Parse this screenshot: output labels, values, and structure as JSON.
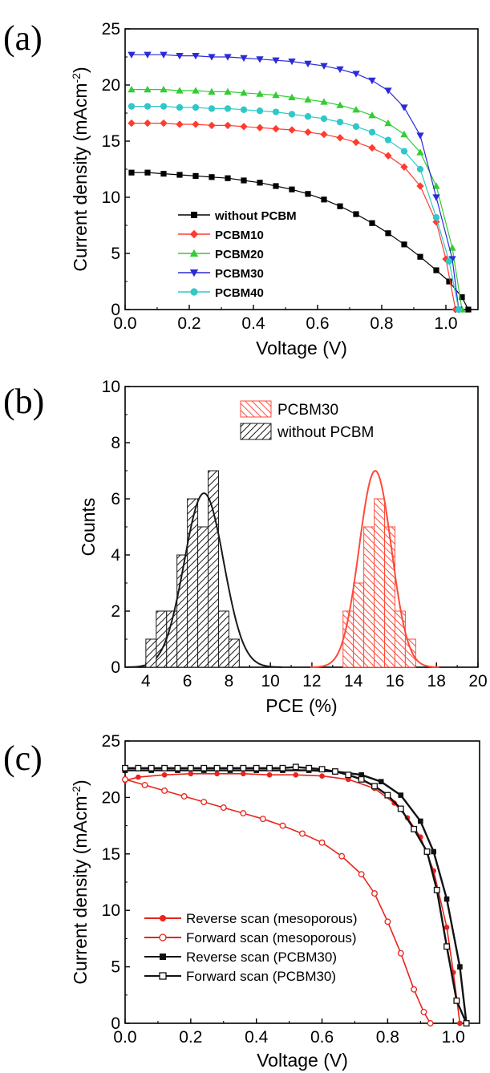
{
  "chart_data": [
    {
      "panel_label": "(a)",
      "type": "line",
      "xlabel": "Voltage (V)",
      "ylabel": "Current density (mAcm-2)",
      "ylabel_main": "Current density (mAcm",
      "ylabel_sup": "-2",
      "ylabel_close": ")",
      "xlim": [
        0.0,
        1.1
      ],
      "ylim": [
        0,
        25
      ],
      "xticks": [
        "0.0",
        "0.2",
        "0.4",
        "0.6",
        "0.8",
        "1.0"
      ],
      "yticks": [
        "0",
        "5",
        "10",
        "15",
        "20",
        "25"
      ],
      "legend_position": "lower-left",
      "series": [
        {
          "name": "without PCBM",
          "color": "#000000",
          "marker": "square",
          "x": [
            0.02,
            0.07,
            0.12,
            0.17,
            0.22,
            0.27,
            0.32,
            0.37,
            0.42,
            0.47,
            0.52,
            0.57,
            0.62,
            0.67,
            0.72,
            0.77,
            0.82,
            0.87,
            0.92,
            0.97,
            1.01,
            1.05,
            1.07
          ],
          "y": [
            12.2,
            12.2,
            12.1,
            12.0,
            11.9,
            11.8,
            11.7,
            11.5,
            11.3,
            11.0,
            10.7,
            10.3,
            9.8,
            9.2,
            8.5,
            7.7,
            6.8,
            5.8,
            4.7,
            3.5,
            2.5,
            1.1,
            0.0
          ]
        },
        {
          "name": "PCBM10",
          "color": "#ff3b2f",
          "marker": "diamond",
          "x": [
            0.02,
            0.07,
            0.12,
            0.17,
            0.22,
            0.27,
            0.32,
            0.37,
            0.42,
            0.47,
            0.52,
            0.57,
            0.62,
            0.67,
            0.72,
            0.77,
            0.82,
            0.87,
            0.92,
            0.97,
            1.0,
            1.03
          ],
          "y": [
            16.6,
            16.6,
            16.6,
            16.5,
            16.5,
            16.4,
            16.4,
            16.3,
            16.2,
            16.1,
            16.0,
            15.8,
            15.6,
            15.3,
            14.9,
            14.4,
            13.7,
            12.7,
            11.0,
            7.8,
            4.5,
            0.0
          ]
        },
        {
          "name": "PCBM20",
          "color": "#33cc33",
          "marker": "triangle-up",
          "x": [
            0.02,
            0.07,
            0.12,
            0.17,
            0.22,
            0.27,
            0.32,
            0.37,
            0.42,
            0.47,
            0.52,
            0.57,
            0.62,
            0.67,
            0.72,
            0.77,
            0.82,
            0.87,
            0.92,
            0.97,
            1.02,
            1.05
          ],
          "y": [
            19.6,
            19.6,
            19.6,
            19.5,
            19.5,
            19.4,
            19.4,
            19.3,
            19.2,
            19.1,
            18.9,
            18.7,
            18.5,
            18.2,
            17.8,
            17.3,
            16.6,
            15.6,
            14.0,
            11.0,
            5.5,
            0.0
          ]
        },
        {
          "name": "PCBM30",
          "color": "#2a2ad8",
          "marker": "triangle-down",
          "x": [
            0.02,
            0.07,
            0.12,
            0.17,
            0.22,
            0.27,
            0.32,
            0.37,
            0.42,
            0.47,
            0.52,
            0.57,
            0.62,
            0.67,
            0.72,
            0.77,
            0.82,
            0.87,
            0.92,
            0.97,
            1.02,
            1.04
          ],
          "y": [
            22.7,
            22.7,
            22.7,
            22.6,
            22.6,
            22.5,
            22.5,
            22.4,
            22.3,
            22.2,
            22.1,
            21.9,
            21.7,
            21.4,
            21.0,
            20.4,
            19.5,
            18.0,
            15.5,
            10.0,
            4.5,
            0.0
          ]
        },
        {
          "name": "PCBM40",
          "color": "#2fc8c8",
          "marker": "circle",
          "x": [
            0.02,
            0.07,
            0.12,
            0.17,
            0.22,
            0.27,
            0.32,
            0.37,
            0.42,
            0.47,
            0.52,
            0.57,
            0.62,
            0.67,
            0.72,
            0.77,
            0.82,
            0.87,
            0.92,
            0.97,
            1.01,
            1.04
          ],
          "y": [
            18.1,
            18.1,
            18.1,
            18.0,
            18.0,
            17.9,
            17.9,
            17.8,
            17.7,
            17.6,
            17.4,
            17.2,
            17.0,
            16.7,
            16.3,
            15.8,
            15.1,
            14.1,
            12.5,
            8.2,
            4.3,
            0.0
          ]
        }
      ]
    },
    {
      "panel_label": "(b)",
      "type": "bar",
      "xlabel": "PCE (%)",
      "ylabel": "Counts",
      "xlim": [
        3,
        20
      ],
      "ylim": [
        0,
        10
      ],
      "xticks": [
        "4",
        "6",
        "8",
        "10",
        "12",
        "14",
        "16",
        "18",
        "20"
      ],
      "yticks": [
        "0",
        "2",
        "4",
        "6",
        "8",
        "10"
      ],
      "legend_position": "top-center",
      "bin_width": 0.5,
      "series": [
        {
          "name": "PCBM30",
          "color": "#ff4a3a",
          "bin_centers": [
            13.75,
            14.25,
            14.75,
            15.25,
            15.75,
            16.25,
            16.75
          ],
          "counts": [
            2,
            3,
            5,
            6,
            5,
            2,
            1
          ],
          "fit": {
            "mean": 15.05,
            "sd": 0.78,
            "peak": 7.0
          }
        },
        {
          "name": "without PCBM",
          "color": "#1a1a1a",
          "bin_centers": [
            4.75,
            5.25,
            5.75,
            6.25,
            6.75,
            7.25,
            7.75,
            8.25
          ],
          "counts": [
            2,
            2,
            4,
            6,
            5,
            7,
            2,
            1
          ],
          "fit": {
            "mean": 6.8,
            "sd": 0.95,
            "peak": 6.2
          }
        }
      ],
      "extra_bars": [
        {
          "series": "without PCBM",
          "center": 4.25,
          "count": 1
        },
        {
          "series": "PCBM30",
          "center": 13.25,
          "count": 0
        }
      ]
    },
    {
      "panel_label": "(c)",
      "type": "line",
      "xlabel": "Voltage (V)",
      "ylabel": "Current density (mAcm-2)",
      "ylabel_main": "Current density (mAcm",
      "ylabel_sup": "-2",
      "ylabel_close": ")",
      "xlim": [
        0.0,
        1.08
      ],
      "ylim": [
        0,
        25
      ],
      "xticks": [
        "0.0",
        "0.2",
        "0.4",
        "0.6",
        "0.8",
        "1.0"
      ],
      "yticks": [
        "0",
        "5",
        "10",
        "15",
        "20",
        "25"
      ],
      "legend_position": "lower-left",
      "series": [
        {
          "name": "Reverse scan (mesoporous)",
          "color": "#e8241c",
          "marker": "filled-circle",
          "x": [
            0.0,
            0.04,
            0.12,
            0.2,
            0.28,
            0.36,
            0.44,
            0.52,
            0.6,
            0.68,
            0.76,
            0.82,
            0.86,
            0.9,
            0.94,
            0.98,
            1.0,
            1.02
          ],
          "y": [
            21.5,
            21.8,
            22.0,
            22.1,
            22.1,
            22.1,
            22.0,
            22.0,
            21.9,
            21.6,
            20.8,
            19.5,
            18.2,
            16.5,
            13.5,
            8.5,
            4.5,
            0.0
          ]
        },
        {
          "name": "Forward scan (mesoporous)",
          "color": "#e8241c",
          "marker": "open-circle",
          "x": [
            0.0,
            0.06,
            0.12,
            0.18,
            0.24,
            0.3,
            0.36,
            0.42,
            0.48,
            0.54,
            0.6,
            0.66,
            0.72,
            0.76,
            0.8,
            0.84,
            0.88,
            0.91,
            0.93
          ],
          "y": [
            21.6,
            21.1,
            20.6,
            20.1,
            19.6,
            19.1,
            18.6,
            18.1,
            17.5,
            16.8,
            16.0,
            14.8,
            13.2,
            11.5,
            9.0,
            6.2,
            3.0,
            1.0,
            0.0
          ]
        },
        {
          "name": "Reverse scan (PCBM30)",
          "color": "#111111",
          "marker": "filled-square",
          "x": [
            0.0,
            0.08,
            0.16,
            0.24,
            0.32,
            0.4,
            0.48,
            0.56,
            0.64,
            0.72,
            0.78,
            0.84,
            0.9,
            0.94,
            0.98,
            1.02,
            1.04
          ],
          "y": [
            22.4,
            22.4,
            22.4,
            22.4,
            22.4,
            22.4,
            22.4,
            22.4,
            22.3,
            22.0,
            21.4,
            20.2,
            17.9,
            15.2,
            11.0,
            5.0,
            0.0
          ]
        },
        {
          "name": "Forward scan (PCBM30)",
          "color": "#111111",
          "marker": "open-square",
          "x": [
            0.0,
            0.04,
            0.08,
            0.12,
            0.16,
            0.2,
            0.24,
            0.28,
            0.32,
            0.36,
            0.4,
            0.44,
            0.48,
            0.52,
            0.56,
            0.6,
            0.64,
            0.68,
            0.72,
            0.76,
            0.8,
            0.84,
            0.88,
            0.92,
            0.95,
            0.98,
            1.01,
            1.04
          ],
          "y": [
            22.6,
            22.6,
            22.6,
            22.6,
            22.6,
            22.6,
            22.6,
            22.6,
            22.6,
            22.6,
            22.6,
            22.6,
            22.6,
            22.7,
            22.6,
            22.5,
            22.3,
            22.0,
            21.6,
            21.0,
            20.2,
            19.0,
            17.2,
            15.2,
            11.8,
            6.8,
            2.0,
            0.0
          ]
        }
      ]
    }
  ]
}
